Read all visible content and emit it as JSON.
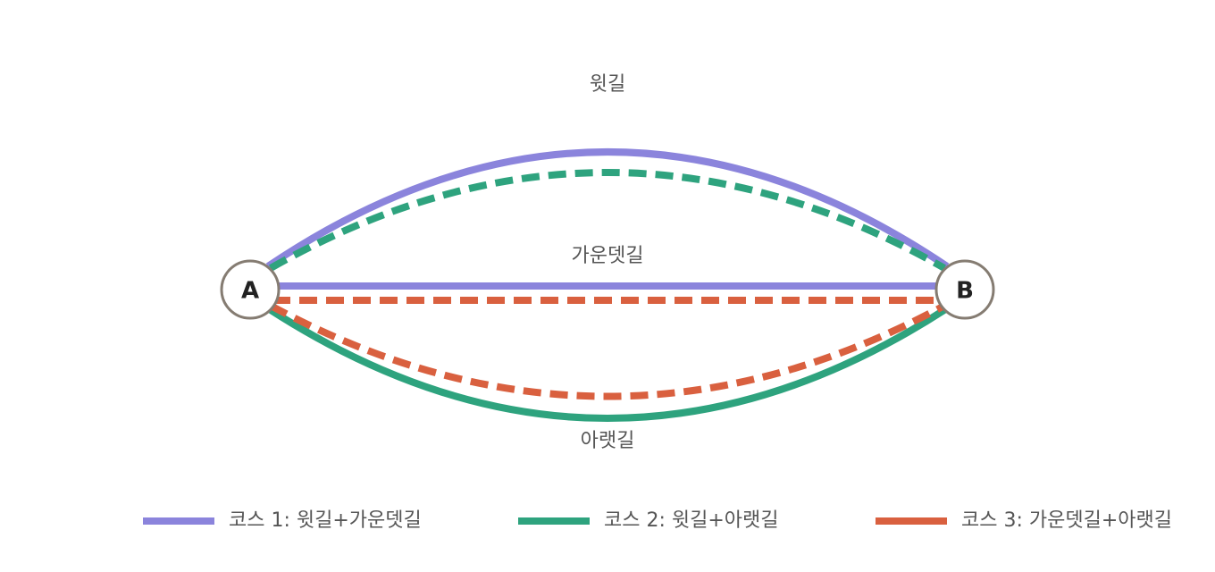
{
  "nodes": [
    {
      "label": "A"
    },
    {
      "label": "B"
    }
  ],
  "paths": [
    {
      "label": "윗길"
    },
    {
      "label": "가운뎃길"
    },
    {
      "label": "아랫길"
    }
  ],
  "legend": [
    {
      "label": "코스 1: 윗길+가운뎃길"
    },
    {
      "label": "코스 2: 윗길+아랫길"
    },
    {
      "label": "코스 3: 가운뎃길+아랫길"
    }
  ]
}
